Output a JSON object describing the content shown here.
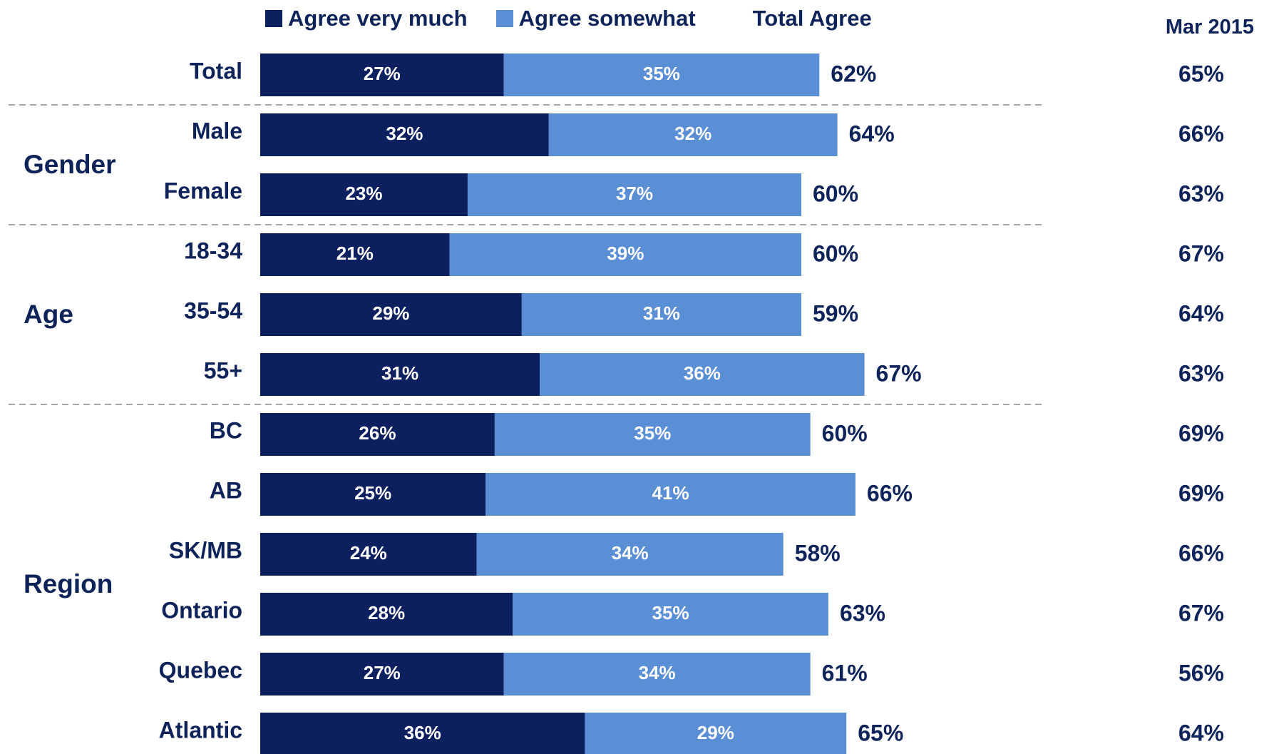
{
  "legend": {
    "series1": "Agree very much",
    "series2": "Agree somewhat",
    "total": "Total Agree"
  },
  "mar_header": "Mar 2015",
  "colors": {
    "dark": "#0c2060",
    "light": "#5a8ed5",
    "text": "#0e2359",
    "divider": "#a6a6a6"
  },
  "chart_data": {
    "type": "bar",
    "orientation": "horizontal",
    "stacked": true,
    "xlim": [
      0,
      100
    ],
    "groups": [
      {
        "name": "",
        "rows": [
          0
        ]
      },
      {
        "name": "Gender",
        "rows": [
          1,
          2
        ]
      },
      {
        "name": "Age",
        "rows": [
          3,
          4,
          5
        ]
      },
      {
        "name": "Region",
        "rows": [
          6,
          7,
          8,
          9,
          10,
          11
        ]
      }
    ],
    "categories": [
      "Total",
      "Male",
      "Female",
      "18-34",
      "35-54",
      "55+",
      "BC",
      "AB",
      "SK/MB",
      "Ontario",
      "Quebec",
      "Atlantic"
    ],
    "series": [
      {
        "name": "Agree very much",
        "values": [
          27,
          32,
          23,
          21,
          29,
          31,
          26,
          25,
          24,
          28,
          27,
          36
        ],
        "labels": [
          "27%",
          "32%",
          "23%",
          "21%",
          "29%",
          "31%",
          "26%",
          "25%",
          "24%",
          "28%",
          "27%",
          "36%"
        ]
      },
      {
        "name": "Agree somewhat",
        "values": [
          35,
          32,
          37,
          39,
          31,
          36,
          35,
          41,
          34,
          35,
          34,
          29
        ],
        "labels": [
          "35%",
          "32%",
          "37%",
          "39%",
          "31%",
          "36%",
          "35%",
          "41%",
          "34%",
          "35%",
          "34%",
          "29%"
        ]
      }
    ],
    "total_agree": [
      "62%",
      "64%",
      "60%",
      "60%",
      "59%",
      "67%",
      "60%",
      "66%",
      "58%",
      "63%",
      "61%",
      "65%"
    ],
    "mar_2015": [
      "65%",
      "66%",
      "63%",
      "67%",
      "64%",
      "63%",
      "69%",
      "69%",
      "66%",
      "67%",
      "56%",
      "64%"
    ]
  }
}
